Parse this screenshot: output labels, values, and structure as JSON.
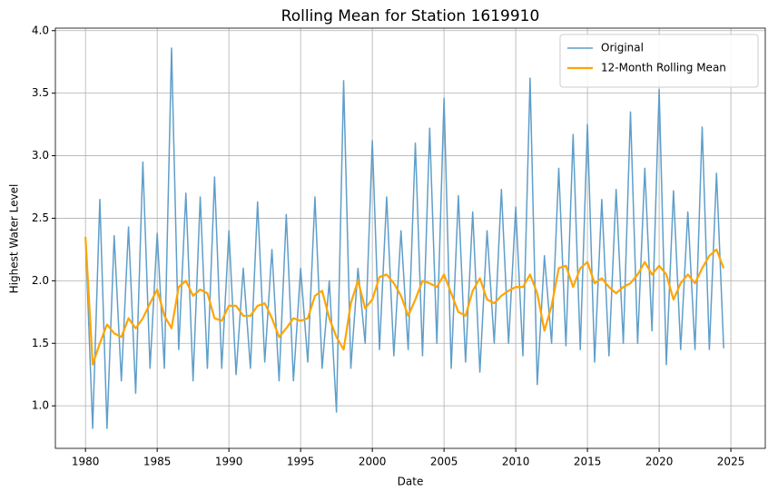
{
  "chart_data": {
    "type": "line",
    "title": "Rolling Mean for Station 1619910",
    "x_label": "Date",
    "y_label": "Highest Water Level",
    "x": [
      1980.0,
      1980.5,
      1981.0,
      1981.5,
      1982.0,
      1982.5,
      1983.0,
      1983.5,
      1984.0,
      1984.5,
      1985.0,
      1985.5,
      1986.0,
      1986.5,
      1987.0,
      1987.5,
      1988.0,
      1988.5,
      1989.0,
      1989.5,
      1990.0,
      1990.5,
      1991.0,
      1991.5,
      1992.0,
      1992.5,
      1993.0,
      1993.5,
      1994.0,
      1994.5,
      1995.0,
      1995.5,
      1996.0,
      1996.5,
      1997.0,
      1997.5,
      1998.0,
      1998.5,
      1999.0,
      1999.5,
      2000.0,
      2000.5,
      2001.0,
      2001.5,
      2002.0,
      2002.5,
      2003.0,
      2003.5,
      2004.0,
      2004.5,
      2005.0,
      2005.5,
      2006.0,
      2006.5,
      2007.0,
      2007.5,
      2008.0,
      2008.5,
      2009.0,
      2009.5,
      2010.0,
      2010.5,
      2011.0,
      2011.5,
      2012.0,
      2012.5,
      2013.0,
      2013.5,
      2014.0,
      2014.5,
      2015.0,
      2015.5,
      2016.0,
      2016.5,
      2017.0,
      2017.5,
      2018.0,
      2018.5,
      2019.0,
      2019.5,
      2020.0,
      2020.5,
      2021.0,
      2021.5,
      2022.0,
      2022.5,
      2023.0,
      2023.5,
      2024.0,
      2024.5
    ],
    "series": [
      {
        "name": "Original",
        "color": "#5f9ec9",
        "width": 1.5,
        "values": [
          2.35,
          0.82,
          2.65,
          0.82,
          2.36,
          1.2,
          2.43,
          1.1,
          2.95,
          1.3,
          2.38,
          1.3,
          3.86,
          1.45,
          2.7,
          1.2,
          2.67,
          1.3,
          2.83,
          1.3,
          2.4,
          1.25,
          2.1,
          1.3,
          2.63,
          1.35,
          2.25,
          1.2,
          2.53,
          1.2,
          2.1,
          1.35,
          2.67,
          1.3,
          2.0,
          0.95,
          3.6,
          1.3,
          2.1,
          1.5,
          3.12,
          1.45,
          2.67,
          1.4,
          2.4,
          1.45,
          3.1,
          1.4,
          3.22,
          1.5,
          3.46,
          1.3,
          2.68,
          1.35,
          2.55,
          1.27,
          2.4,
          1.5,
          2.73,
          1.5,
          2.59,
          1.4,
          3.62,
          1.17,
          2.2,
          1.5,
          2.9,
          1.48,
          3.17,
          1.45,
          3.25,
          1.35,
          2.65,
          1.4,
          2.73,
          1.5,
          3.35,
          1.5,
          2.9,
          1.6,
          3.53,
          1.33,
          2.72,
          1.45,
          2.55,
          1.45,
          3.23,
          1.45,
          2.86,
          1.46
        ]
      },
      {
        "name": "12-Month Rolling Mean",
        "color": "#ffa500",
        "width": 2.2,
        "values": [
          2.35,
          1.33,
          1.5,
          1.65,
          1.58,
          1.55,
          1.7,
          1.62,
          1.7,
          1.82,
          1.93,
          1.72,
          1.62,
          1.95,
          2.0,
          1.88,
          1.93,
          1.9,
          1.7,
          1.68,
          1.8,
          1.8,
          1.72,
          1.72,
          1.8,
          1.82,
          1.7,
          1.55,
          1.62,
          1.7,
          1.68,
          1.7,
          1.88,
          1.92,
          1.7,
          1.55,
          1.45,
          1.82,
          2.0,
          1.78,
          1.85,
          2.03,
          2.05,
          1.98,
          1.88,
          1.72,
          1.85,
          2.0,
          1.98,
          1.95,
          2.05,
          1.9,
          1.75,
          1.72,
          1.92,
          2.02,
          1.85,
          1.82,
          1.88,
          1.92,
          1.95,
          1.95,
          2.05,
          1.9,
          1.6,
          1.8,
          2.1,
          2.12,
          1.95,
          2.1,
          2.15,
          1.98,
          2.02,
          1.95,
          1.9,
          1.95,
          1.98,
          2.05,
          2.15,
          2.05,
          2.12,
          2.05,
          1.85,
          1.98,
          2.05,
          1.98,
          2.1,
          2.2,
          2.25,
          2.1
        ]
      }
    ],
    "xlim": [
      1977.9,
      2027.4
    ],
    "xticks": [
      1980,
      1985,
      1990,
      1995,
      2000,
      2005,
      2010,
      2015,
      2020,
      2025
    ],
    "ylim": [
      0.66,
      4.02
    ],
    "yticks": [
      {
        "value": 1.0,
        "label": "1.0"
      },
      {
        "value": 1.5,
        "label": "1.5"
      },
      {
        "value": 2.0,
        "label": "2.0"
      },
      {
        "value": 2.5,
        "label": "2.5"
      },
      {
        "value": 3.0,
        "label": "3.0"
      },
      {
        "value": 3.5,
        "label": "3.5"
      },
      {
        "value": 4.0,
        "label": "4.0"
      }
    ],
    "grid": true,
    "legend": "upper right"
  }
}
